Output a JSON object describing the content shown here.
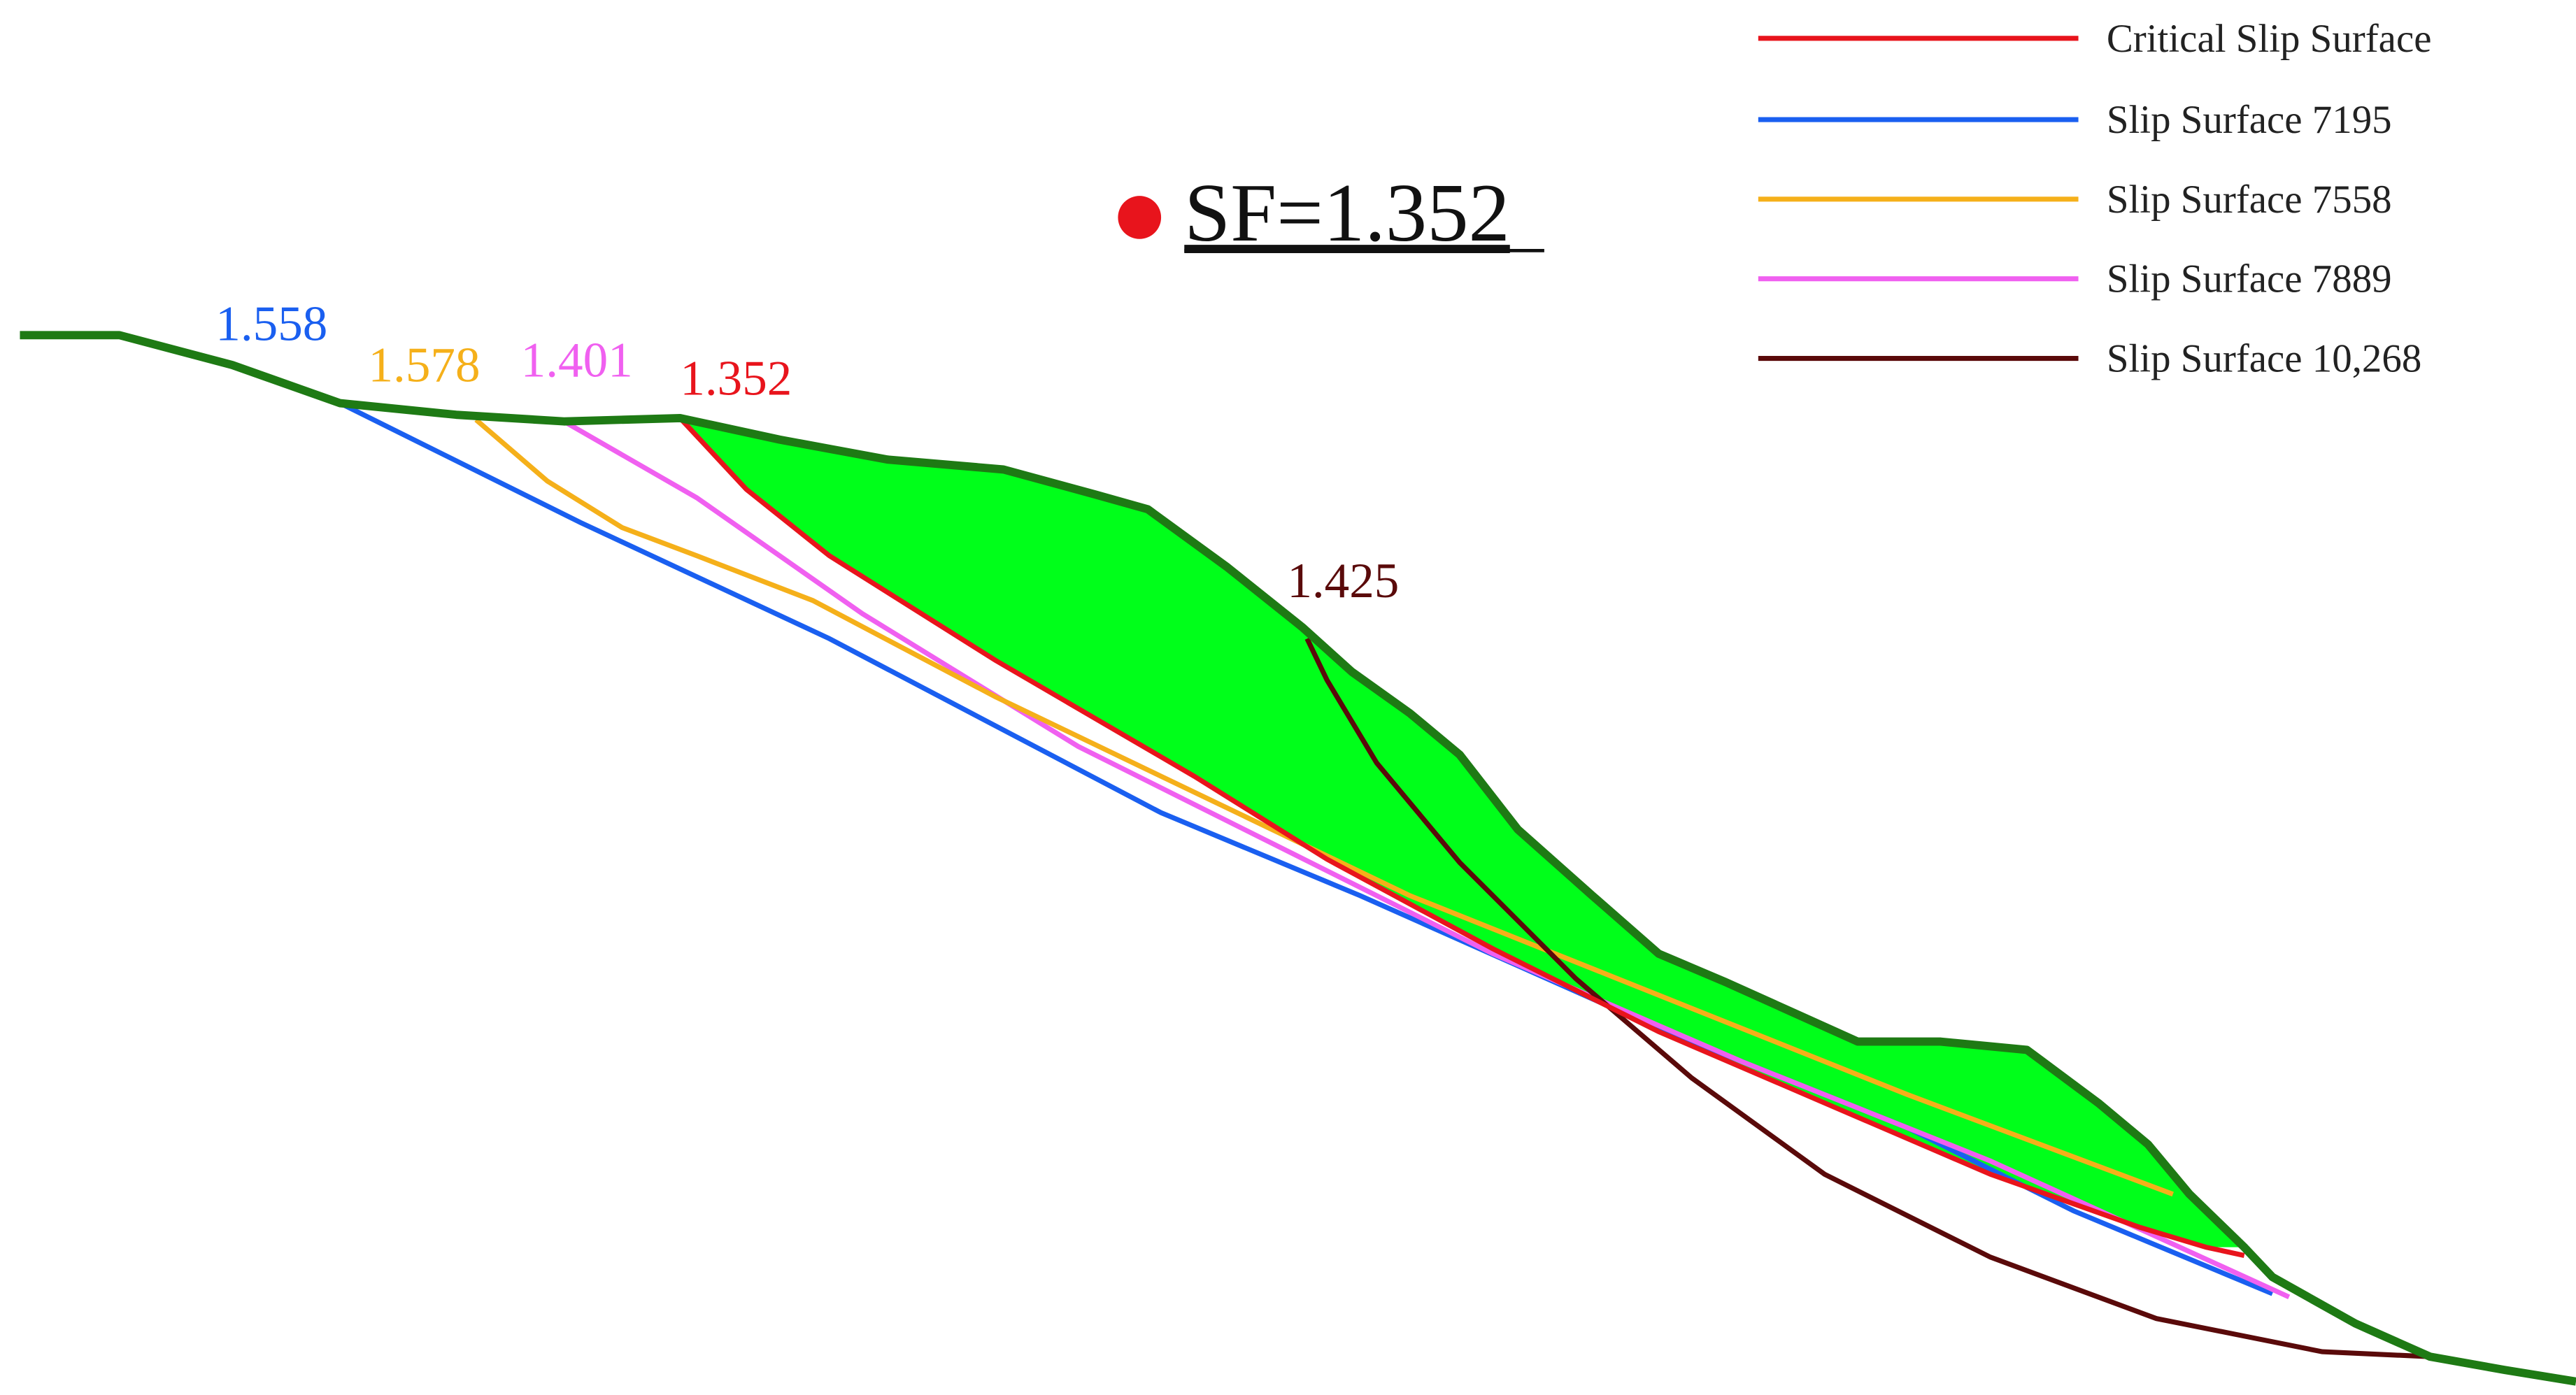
{
  "title": "SF=1.352",
  "legend": [
    "Critical Slip Surface",
    "Slip Surface 7195",
    "Slip Surface 7558",
    "Slip Surface 7889",
    "Slip Surface 10,268"
  ],
  "surface_labels": [
    "1.558",
    "1.578",
    "1.401",
    "1.352",
    "1.425"
  ]
}
